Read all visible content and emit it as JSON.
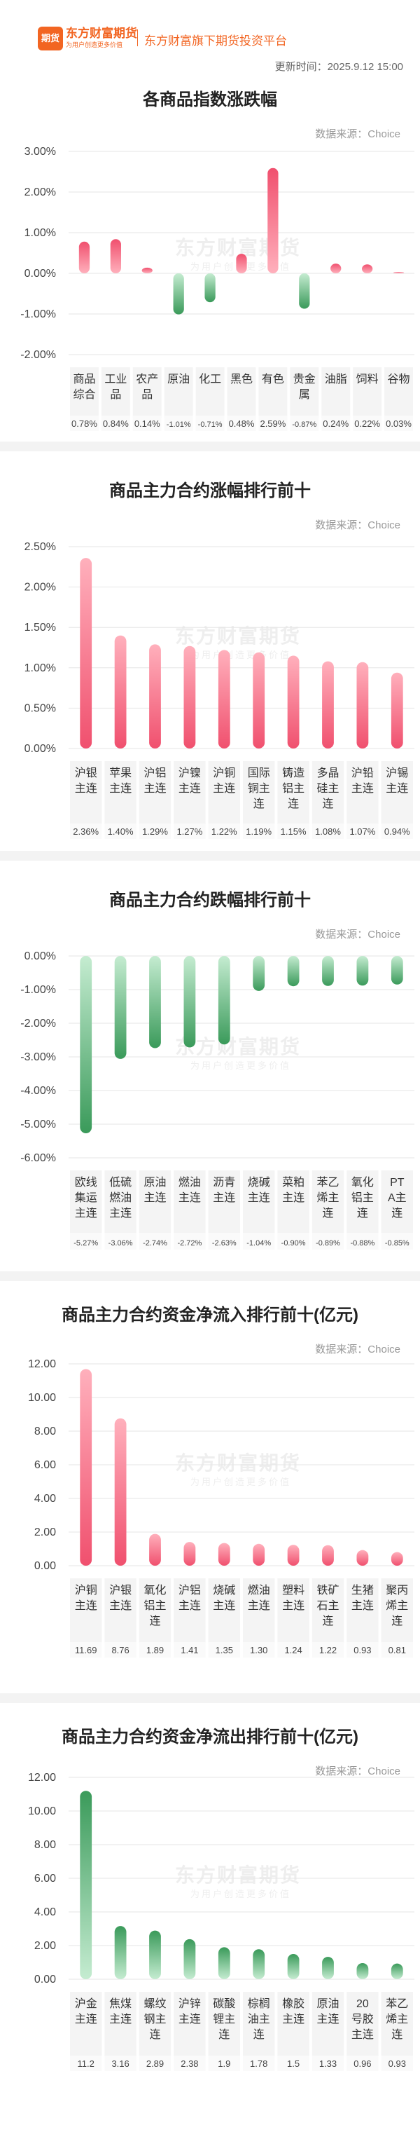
{
  "header": {
    "logo_mark": "期货",
    "logo_cn": "东方财富期货",
    "logo_en": "为用户创造更多价值",
    "platform": "东方财富旗下期货投资平台",
    "update_time": "更新时间：2025.9.12 15:00"
  },
  "watermark": {
    "main": "东方财富期货",
    "sub": "为用户创造更多价值"
  },
  "colors": {
    "up": "#f0506e",
    "up_light": "#ffb0bc",
    "down": "#3a9a5a",
    "down_light": "#c5ecd1",
    "grid": "#e6e6e6",
    "label_bg": "#f4f4f4"
  },
  "chart_data": [
    {
      "type": "bar",
      "title": "各商品指数涨跌幅",
      "source": "数据来源：Choice",
      "categories": [
        "商品综合",
        "工业品",
        "农产品",
        "原油",
        "化工",
        "黑色",
        "有色",
        "贵金属",
        "油脂",
        "饲料",
        "谷物"
      ],
      "values": [
        0.78,
        0.84,
        0.14,
        -1.01,
        -0.71,
        0.48,
        2.59,
        -0.87,
        0.24,
        0.22,
        0.03
      ],
      "value_labels": [
        "0.78%",
        "0.84%",
        "0.14%",
        "-1.01%",
        "-0.71%",
        "0.48%",
        "2.59%",
        "-0.87%",
        "0.24%",
        "0.22%",
        "0.03%"
      ],
      "yticks": [
        "3.00%",
        "2.00%",
        "1.00%",
        "0.00%",
        "-1.00%",
        "-2.00%"
      ],
      "ylim": [
        -2,
        3
      ]
    },
    {
      "type": "bar",
      "title": "商品主力合约涨幅排行前十",
      "source": "数据来源：Choice",
      "categories": [
        "沪银主连",
        "苹果主连",
        "沪铝主连",
        "沪镍主连",
        "沪铜主连",
        "国际铜主连",
        "铸造铝主连",
        "多晶硅主连",
        "沪铅主连",
        "沪锡主连"
      ],
      "values": [
        2.36,
        1.4,
        1.29,
        1.27,
        1.22,
        1.19,
        1.15,
        1.08,
        1.07,
        0.94
      ],
      "value_labels": [
        "2.36%",
        "1.40%",
        "1.29%",
        "1.27%",
        "1.22%",
        "1.19%",
        "1.15%",
        "1.08%",
        "1.07%",
        "0.94%"
      ],
      "yticks": [
        "2.50%",
        "2.00%",
        "1.50%",
        "1.00%",
        "0.50%",
        "0.00%"
      ],
      "ylim": [
        0,
        2.5
      ]
    },
    {
      "type": "bar",
      "title": "商品主力合约跌幅排行前十",
      "source": "数据来源：Choice",
      "categories": [
        "欧线集运主连",
        "低硫燃油主连",
        "原油主连",
        "燃油主连",
        "沥青主连",
        "烧碱主连",
        "菜粕主连",
        "苯乙烯主连",
        "氧化铝主连",
        "PTA主连"
      ],
      "values": [
        -5.27,
        -3.06,
        -2.74,
        -2.72,
        -2.63,
        -1.04,
        -0.9,
        -0.89,
        -0.88,
        -0.85
      ],
      "value_labels": [
        "-5.27%",
        "-3.06%",
        "-2.74%",
        "-2.72%",
        "-2.63%",
        "-1.04%",
        "-0.90%",
        "-0.89%",
        "-0.88%",
        "-0.85%"
      ],
      "yticks": [
        "0.00%",
        "-1.00%",
        "-2.00%",
        "-3.00%",
        "-4.00%",
        "-5.00%",
        "-6.00%"
      ],
      "ylim": [
        -6,
        0
      ]
    },
    {
      "type": "bar",
      "title": "商品主力合约资金净流入排行前十(亿元)",
      "source": "数据来源：Choice",
      "categories": [
        "沪铜主连",
        "沪银主连",
        "氧化铝主连",
        "沪铝主连",
        "烧碱主连",
        "燃油主连",
        "塑料主连",
        "铁矿石主连",
        "生猪主连",
        "聚丙烯主连"
      ],
      "values": [
        11.69,
        8.76,
        1.89,
        1.41,
        1.35,
        1.3,
        1.24,
        1.22,
        0.93,
        0.81
      ],
      "value_labels": [
        "11.69",
        "8.76",
        "1.89",
        "1.41",
        "1.35",
        "1.30",
        "1.24",
        "1.22",
        "0.93",
        "0.81"
      ],
      "yticks": [
        "12.00",
        "10.00",
        "8.00",
        "6.00",
        "4.00",
        "2.00",
        "0.00"
      ],
      "ylim": [
        0,
        12
      ]
    },
    {
      "type": "bar",
      "title": "商品主力合约资金净流出排行前十(亿元)",
      "source": "数据来源：Choice",
      "categories": [
        "沪金主连",
        "焦煤主连",
        "螺纹钢主连",
        "沪锌主连",
        "碳酸锂主连",
        "棕榈油主连",
        "橡胶主连",
        "原油主连",
        "20号胶主连",
        "苯乙烯主连"
      ],
      "values": [
        11.2,
        3.16,
        2.89,
        2.38,
        1.9,
        1.78,
        1.5,
        1.33,
        0.96,
        0.93
      ],
      "value_labels": [
        "11.2",
        "3.16",
        "2.89",
        "2.38",
        "1.9",
        "1.78",
        "1.5",
        "1.33",
        "0.96",
        "0.93"
      ],
      "yticks": [
        "12.00",
        "10.00",
        "8.00",
        "6.00",
        "4.00",
        "2.00",
        "0.00"
      ],
      "ylim": [
        0,
        12
      ],
      "bar_color": "green"
    }
  ]
}
